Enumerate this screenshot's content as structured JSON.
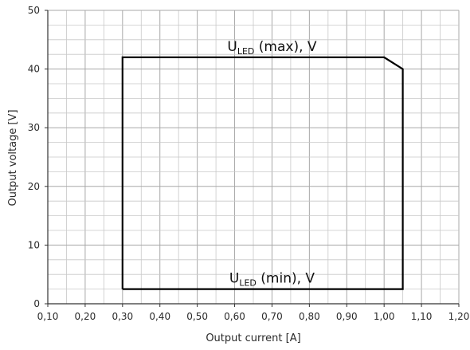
{
  "chart_data": {
    "type": "line",
    "xlabel": "Output current [A]",
    "ylabel": "Output voltage [V]",
    "xlim": [
      0.1,
      1.2
    ],
    "ylim": [
      0,
      50
    ],
    "x_ticks": [
      "0,10",
      "0,20",
      "0,30",
      "0,40",
      "0,50",
      "0,60",
      "0,70",
      "0,80",
      "0,90",
      "1,00",
      "1,10",
      "1,20"
    ],
    "y_ticks": [
      "0",
      "10",
      "20",
      "30",
      "40",
      "50"
    ],
    "grid": true,
    "line_color": "#000000",
    "operating_window": {
      "x": [
        0.3,
        0.3,
        1.0,
        1.05,
        1.05,
        0.3
      ],
      "y": [
        2.5,
        42,
        42,
        40,
        2.5,
        2.5
      ]
    },
    "annotations": [
      {
        "main": "U",
        "sub": "LED",
        "rest": " (max), V",
        "x": 0.7,
        "y": 42
      },
      {
        "main": "U",
        "sub": "LED",
        "rest": " (min), V",
        "x": 0.7,
        "y": 2.5
      }
    ]
  }
}
